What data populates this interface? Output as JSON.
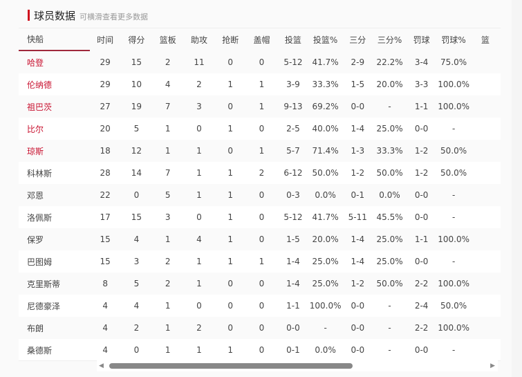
{
  "header": {
    "title": "球员数据",
    "subtitle": "可横滑查看更多数据"
  },
  "table": {
    "columns": [
      "快船",
      "时间",
      "得分",
      "篮板",
      "助攻",
      "抢断",
      "盖帽",
      "投篮",
      "投篮%",
      "三分",
      "三分%",
      "罚球",
      "罚球%",
      "篮"
    ],
    "rows": [
      {
        "starter": true,
        "cells": [
          "哈登",
          "29",
          "15",
          "2",
          "11",
          "0",
          "0",
          "5-12",
          "41.7%",
          "2-9",
          "22.2%",
          "3-4",
          "75.0%"
        ]
      },
      {
        "starter": true,
        "cells": [
          "伦纳德",
          "29",
          "10",
          "4",
          "2",
          "1",
          "1",
          "3-9",
          "33.3%",
          "1-5",
          "20.0%",
          "3-3",
          "100.0%"
        ]
      },
      {
        "starter": true,
        "cells": [
          "祖巴茨",
          "27",
          "19",
          "7",
          "3",
          "0",
          "1",
          "9-13",
          "69.2%",
          "0-0",
          "-",
          "1-1",
          "100.0%"
        ]
      },
      {
        "starter": true,
        "cells": [
          "比尔",
          "20",
          "5",
          "1",
          "0",
          "1",
          "0",
          "2-5",
          "40.0%",
          "1-4",
          "25.0%",
          "0-0",
          "-"
        ]
      },
      {
        "starter": true,
        "cells": [
          "琼斯",
          "18",
          "12",
          "1",
          "1",
          "0",
          "1",
          "5-7",
          "71.4%",
          "1-3",
          "33.3%",
          "1-2",
          "50.0%"
        ]
      },
      {
        "starter": false,
        "cells": [
          "科林斯",
          "28",
          "14",
          "7",
          "1",
          "1",
          "2",
          "6-12",
          "50.0%",
          "1-2",
          "50.0%",
          "1-2",
          "50.0%"
        ]
      },
      {
        "starter": false,
        "cells": [
          "邓恩",
          "22",
          "0",
          "5",
          "1",
          "1",
          "0",
          "0-3",
          "0.0%",
          "0-1",
          "0.0%",
          "0-0",
          "-"
        ]
      },
      {
        "starter": false,
        "cells": [
          "洛佩斯",
          "17",
          "15",
          "3",
          "0",
          "1",
          "0",
          "5-12",
          "41.7%",
          "5-11",
          "45.5%",
          "0-0",
          "-"
        ]
      },
      {
        "starter": false,
        "cells": [
          "保罗",
          "15",
          "4",
          "1",
          "4",
          "1",
          "0",
          "1-5",
          "20.0%",
          "1-4",
          "25.0%",
          "1-1",
          "100.0%"
        ]
      },
      {
        "starter": false,
        "cells": [
          "巴图姆",
          "15",
          "3",
          "2",
          "1",
          "1",
          "1",
          "1-4",
          "25.0%",
          "1-4",
          "25.0%",
          "0-0",
          "-"
        ]
      },
      {
        "starter": false,
        "cells": [
          "克里斯蒂",
          "8",
          "5",
          "2",
          "1",
          "0",
          "0",
          "1-4",
          "25.0%",
          "1-2",
          "50.0%",
          "2-2",
          "100.0%"
        ]
      },
      {
        "starter": false,
        "cells": [
          "尼德豪泽",
          "4",
          "4",
          "1",
          "0",
          "0",
          "0",
          "1-1",
          "100.0%",
          "0-0",
          "-",
          "2-4",
          "50.0%"
        ]
      },
      {
        "starter": false,
        "cells": [
          "布朗",
          "4",
          "2",
          "1",
          "2",
          "0",
          "0",
          "0-0",
          "-",
          "0-0",
          "-",
          "2-2",
          "100.0%"
        ]
      },
      {
        "starter": false,
        "cells": [
          "桑德斯",
          "4",
          "0",
          "1",
          "1",
          "1",
          "0",
          "0-1",
          "0.0%",
          "0-0",
          "-",
          "0-0",
          "-"
        ]
      }
    ]
  },
  "colors": {
    "accent": "#c8102e",
    "tab_underline": "#a0283c"
  },
  "scroll": {
    "position_percent": 0
  }
}
